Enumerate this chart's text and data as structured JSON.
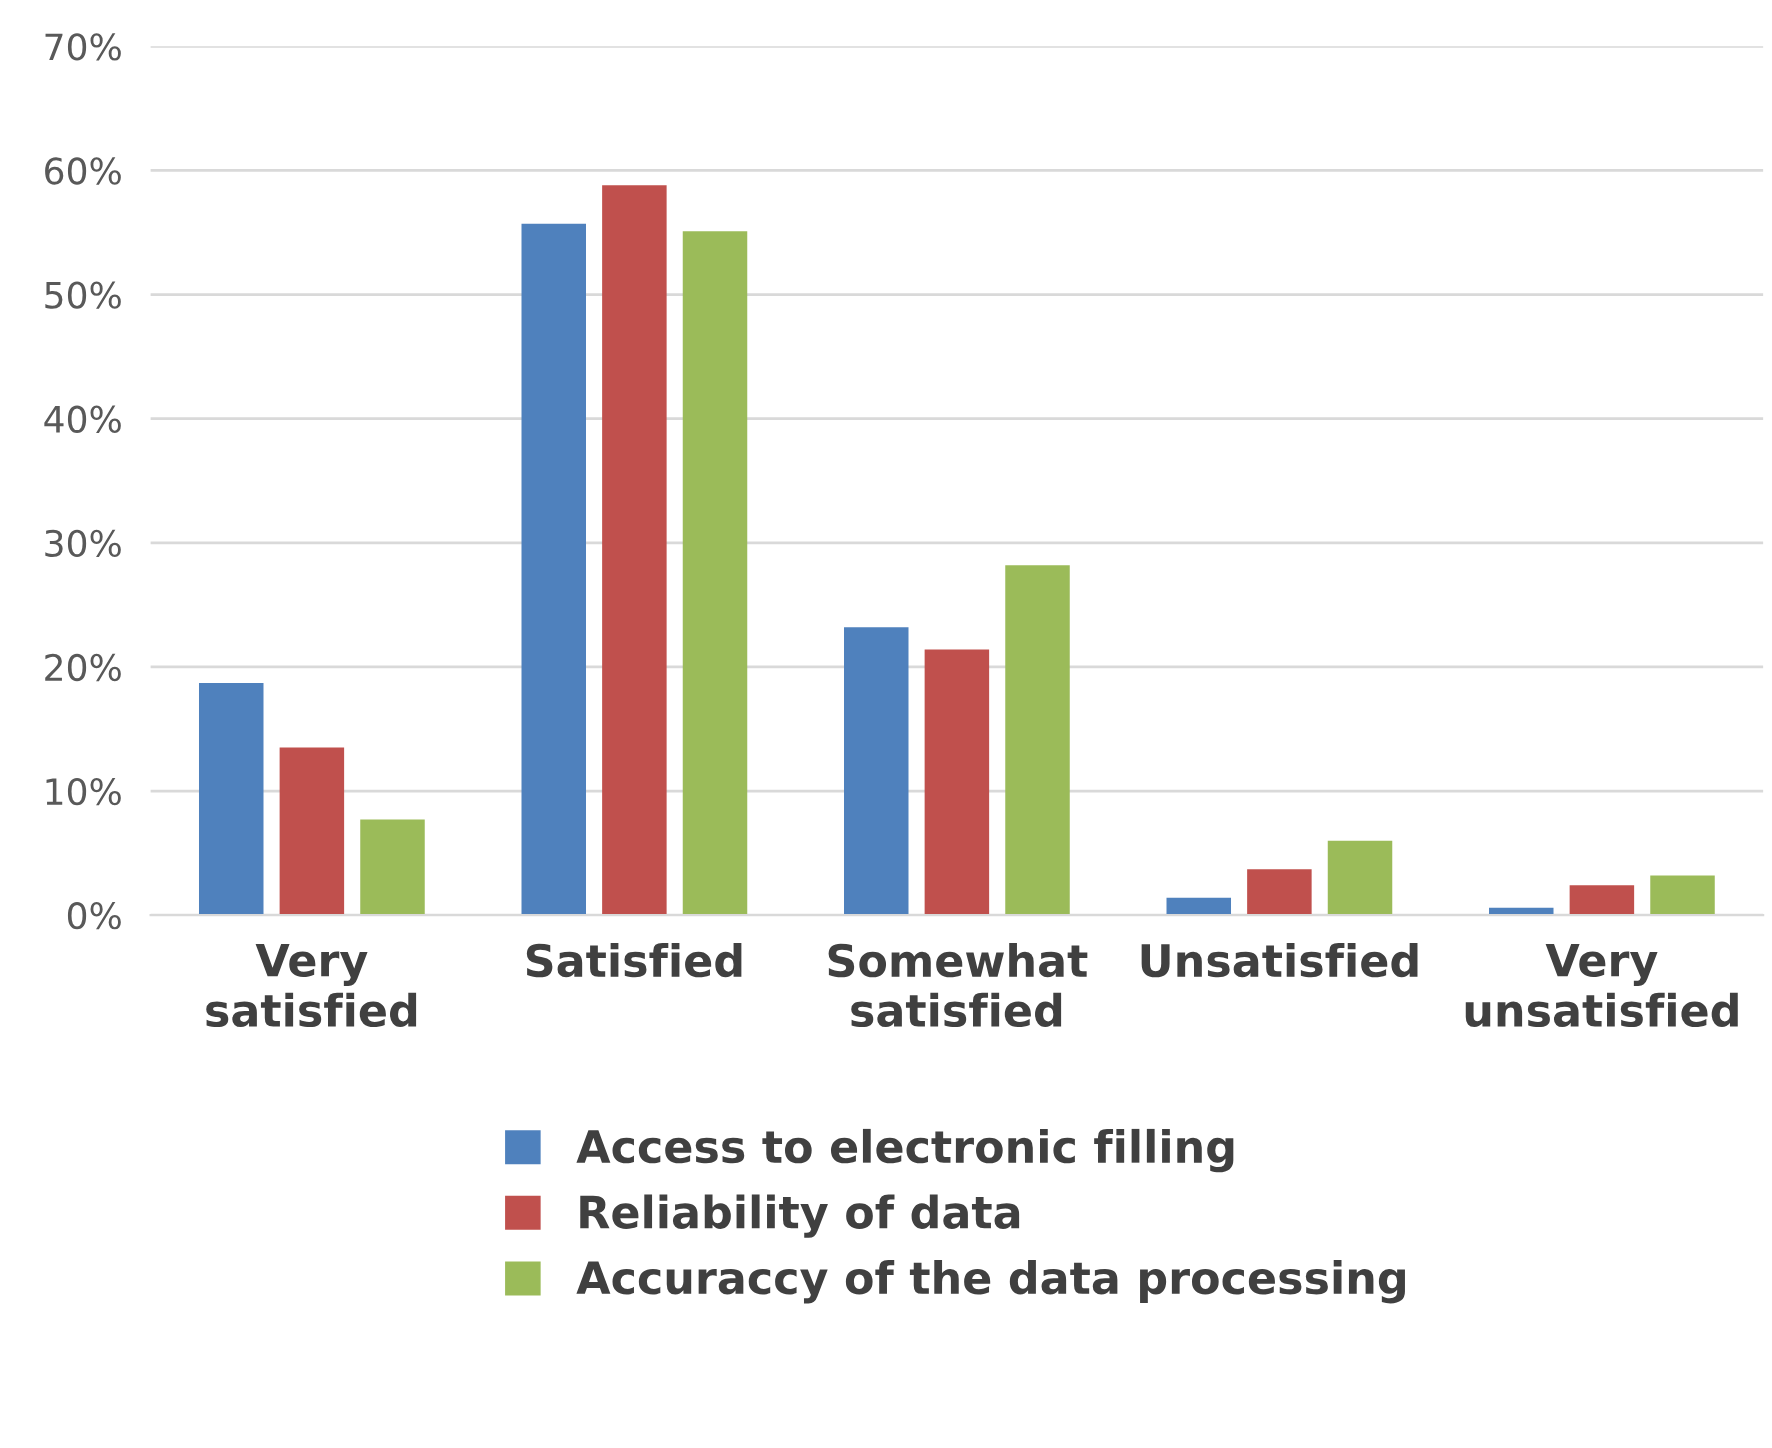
{
  "chart_data": {
    "type": "bar",
    "categories": [
      "Very\nsatisfied",
      "Satisfied",
      "Somewhat\nsatisfied",
      "Unsatisfied",
      "Very\nunsatisfied"
    ],
    "series": [
      {
        "name": "Access to electronic filling",
        "color": "#4f81bd",
        "values": [
          18.7,
          55.7,
          23.2,
          1.4,
          0.6
        ]
      },
      {
        "name": "Reliability of data",
        "color": "#c0504d",
        "values": [
          13.5,
          58.8,
          21.4,
          3.7,
          2.4
        ]
      },
      {
        "name": "Accuraccy of the data processing",
        "color": "#9bbb59",
        "values": [
          7.7,
          55.1,
          28.2,
          6.0,
          3.2
        ]
      }
    ],
    "ylim": [
      0,
      70
    ],
    "yticks": [
      {
        "value": 0,
        "label": "0%"
      },
      {
        "value": 10,
        "label": "10%"
      },
      {
        "value": 20,
        "label": "20%"
      },
      {
        "value": 30,
        "label": "30%"
      },
      {
        "value": 40,
        "label": "40%"
      },
      {
        "value": 50,
        "label": "50%"
      },
      {
        "value": 60,
        "label": "60%"
      },
      {
        "value": 70,
        "label": "70%"
      }
    ],
    "grid": "y",
    "legend": "bottom"
  }
}
